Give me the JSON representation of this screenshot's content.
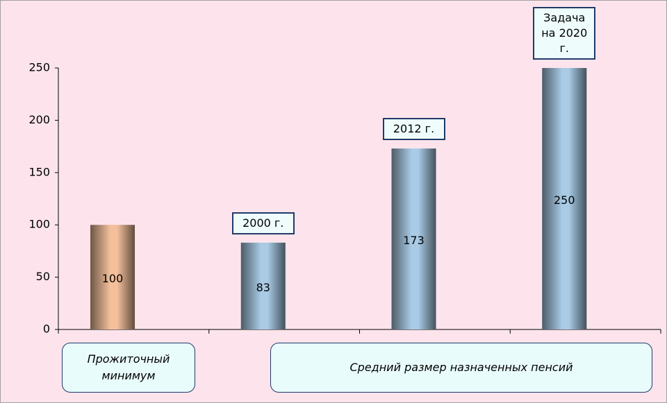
{
  "chart_data": {
    "type": "bar",
    "categories": [
      null,
      "2000 г.",
      "2012 г.",
      "Задача на 2020 г."
    ],
    "values": [
      100,
      83,
      173,
      250
    ],
    "colors": [
      "#f4c09c",
      "#a9cbe6",
      "#a9cbe6",
      "#a9cbe6"
    ],
    "group_labels": [
      "Прожиточный минимум",
      "Средний размер назначенных пенсий"
    ],
    "ylim": [
      0,
      250
    ],
    "yticks": [
      0,
      50,
      100,
      150,
      200,
      250
    ],
    "grid": false
  }
}
